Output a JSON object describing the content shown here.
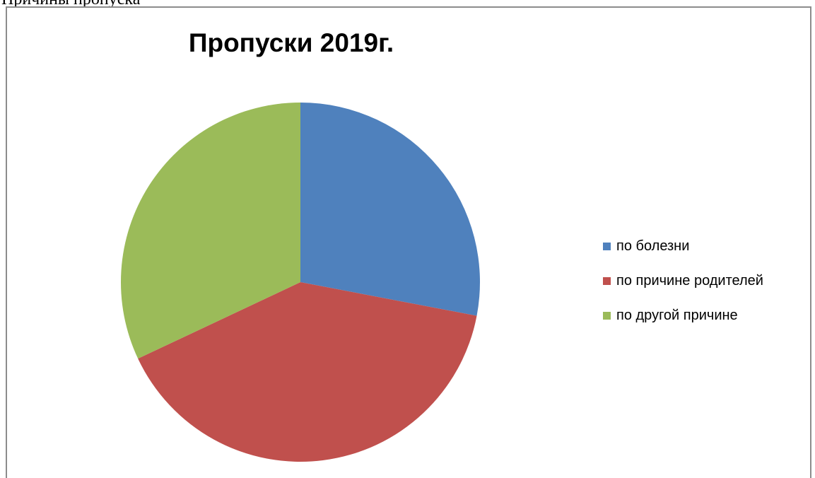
{
  "page": {
    "caption": "Причины пропуска"
  },
  "chart_data": {
    "type": "pie",
    "title": "Пропуски 2019г.",
    "categories": [
      "по болезни",
      "по причине родителей",
      "по другой причине"
    ],
    "values": [
      28,
      40,
      32
    ],
    "colors": [
      "#4f81bd",
      "#c0504d",
      "#9bbb59"
    ],
    "legend_position": "right"
  }
}
